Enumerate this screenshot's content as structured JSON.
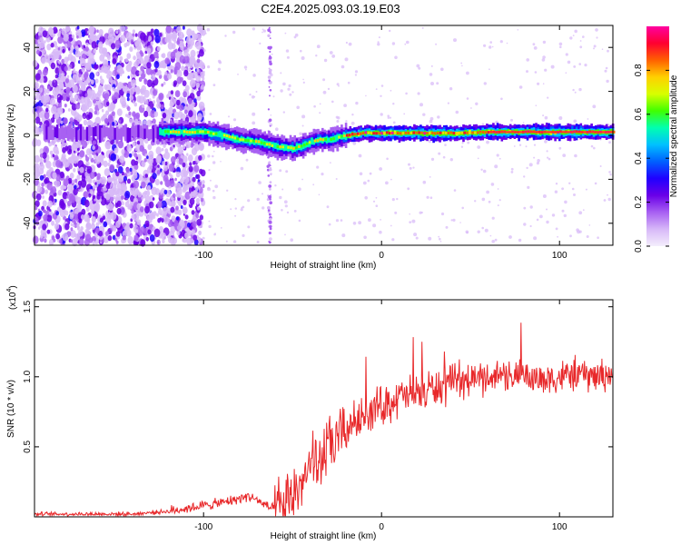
{
  "title": "C2E4.2025.093.03.19.E03",
  "chart_data": [
    {
      "type": "heatmap",
      "xlabel": "Height of straight line (km)",
      "ylabel": "Frequency (Hz)",
      "xlim": [
        -195,
        130
      ],
      "ylim": [
        -50,
        50
      ],
      "xticks": [
        -100,
        0,
        100
      ],
      "yticks": [
        -40,
        -20,
        0,
        20,
        40
      ],
      "colorbar": {
        "label": "Normalized spectral amplitude",
        "range": [
          0.0,
          1.0
        ],
        "ticks": [
          "0.0",
          "0.2",
          "0.4",
          "0.6",
          "0.8"
        ],
        "ticks_values": [
          0.0,
          0.2,
          0.4,
          0.6,
          0.8
        ],
        "colors": [
          "#f4eefc",
          "#d7b8f8",
          "#a860f2",
          "#6a00e8",
          "#2000ff",
          "#0060ff",
          "#00c0ff",
          "#00ffb0",
          "#40ff00",
          "#d8ff00",
          "#ffd000",
          "#ff6000",
          "#ff0030",
          "#ff00a0"
        ]
      },
      "ridge": {
        "x": [
          -125,
          -110,
          -100,
          -90,
          -80,
          -70,
          -60,
          -50,
          -45,
          -40,
          -35,
          -30,
          -25,
          -20,
          -10,
          0,
          20,
          40,
          60,
          80,
          100,
          130
        ],
        "freq": [
          1.5,
          1.5,
          1.5,
          0,
          -2,
          -3,
          -5,
          -6,
          -5,
          -3,
          -2,
          -2,
          -1,
          0,
          1,
          1,
          1,
          1,
          1.5,
          1.5,
          1.5,
          1.5
        ]
      }
    },
    {
      "type": "line",
      "xlabel": "Height of straight line (km)",
      "ylabel": "SNR (10 * v/v)",
      "yscale_label": "(x10",
      "yscale_exp": "4",
      "yscale_close": ")",
      "xlim": [
        -195,
        130
      ],
      "ylim": [
        0,
        1.55
      ],
      "xticks": [
        -100,
        0,
        100
      ],
      "yticks": [
        "0.5",
        "1.0",
        "1.5"
      ],
      "ytick_values": [
        0.5,
        1.0,
        1.5
      ],
      "series": [
        {
          "color": "#e8282a",
          "x": [
            -195,
            -180,
            -160,
            -140,
            -130,
            -120,
            -110,
            -100,
            -90,
            -80,
            -75,
            -70,
            -65,
            -60,
            -55,
            -50,
            -45,
            -40,
            -35,
            -30,
            -25,
            -20,
            -15,
            -10,
            -5,
            0,
            10,
            20,
            30,
            40,
            50,
            60,
            70,
            80,
            90,
            100,
            110,
            120,
            130
          ],
          "y": [
            0.02,
            0.02,
            0.02,
            0.02,
            0.03,
            0.04,
            0.06,
            0.08,
            0.1,
            0.13,
            0.15,
            0.12,
            0.08,
            0.05,
            0.06,
            0.15,
            0.25,
            0.33,
            0.4,
            0.48,
            0.55,
            0.62,
            0.68,
            0.72,
            0.76,
            0.8,
            0.85,
            0.88,
            0.92,
            0.95,
            0.98,
            1.0,
            1.02,
            1.0,
            0.98,
            1.0,
            1.02,
            1.0,
            1.03
          ]
        }
      ]
    }
  ]
}
